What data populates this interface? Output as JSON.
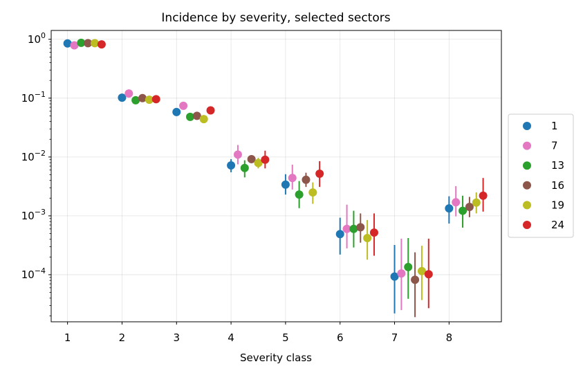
{
  "chart_data": {
    "type": "scatter",
    "title": "Incidence by severity, selected sectors",
    "xlabel": "Severity class",
    "ylabel": "",
    "yscale": "log",
    "xlim": [
      0.7,
      8.96
    ],
    "ylim_log10": [
      -4.8,
      0.15
    ],
    "x_ticks": [
      1,
      2,
      3,
      4,
      5,
      6,
      7,
      8
    ],
    "x_tick_labels": [
      "1",
      "2",
      "3",
      "4",
      "5",
      "6",
      "7",
      "8"
    ],
    "y_ticks": [
      {
        "exp": 0,
        "base": "10",
        "sup": "0"
      },
      {
        "exp": -1,
        "base": "10",
        "sup": "−1"
      },
      {
        "exp": -2,
        "base": "10",
        "sup": "−2"
      },
      {
        "exp": -3,
        "base": "10",
        "sup": "−3"
      },
      {
        "exp": -4,
        "base": "10",
        "sup": "−4"
      }
    ],
    "grid": true,
    "legend_position": "right-outside",
    "categories": [
      1,
      2,
      3,
      4,
      5,
      6,
      7,
      8
    ],
    "offset_step": 0.125,
    "series": [
      {
        "name": "1",
        "color": "#1f77b4",
        "values": [
          0.85,
          0.102,
          0.058,
          0.0072,
          0.0034,
          0.00049,
          9.3e-05,
          0.00134
        ],
        "lower": [
          0.85,
          0.102,
          0.058,
          0.0055,
          0.0023,
          0.00022,
          2.2e-05,
          0.00074
        ],
        "upper": [
          0.85,
          0.102,
          0.058,
          0.0092,
          0.0051,
          0.00093,
          0.00032,
          0.00215
        ]
      },
      {
        "name": "7",
        "color": "#e377c2",
        "values": [
          0.79,
          0.12,
          0.074,
          0.011,
          0.0044,
          0.0006,
          0.000105,
          0.0017
        ],
        "lower": [
          0.79,
          0.12,
          0.074,
          0.0075,
          0.0028,
          0.00028,
          2.5e-05,
          0.00098
        ],
        "upper": [
          0.79,
          0.12,
          0.074,
          0.016,
          0.0074,
          0.00155,
          0.00041,
          0.0032
        ]
      },
      {
        "name": "13",
        "color": "#2ca02c",
        "values": [
          0.87,
          0.092,
          0.048,
          0.0065,
          0.0023,
          0.0006,
          0.000135,
          0.00122
        ],
        "lower": [
          0.87,
          0.092,
          0.048,
          0.0045,
          0.00135,
          0.00029,
          3.9e-05,
          0.00063
        ],
        "upper": [
          0.87,
          0.092,
          0.048,
          0.0088,
          0.0039,
          0.00122,
          0.00042,
          0.0022
        ]
      },
      {
        "name": "16",
        "color": "#8c564b",
        "values": [
          0.86,
          0.1,
          0.05,
          0.0092,
          0.0041,
          0.00064,
          8.2e-05,
          0.00142
        ],
        "lower": [
          0.86,
          0.1,
          0.05,
          0.0092,
          0.0031,
          0.00035,
          1.9e-05,
          0.00095
        ],
        "upper": [
          0.86,
          0.1,
          0.05,
          0.0092,
          0.0054,
          0.0011,
          0.00024,
          0.0021
        ]
      },
      {
        "name": "19",
        "color": "#bcbd22",
        "values": [
          0.86,
          0.094,
          0.044,
          0.0079,
          0.0025,
          0.00042,
          0.000115,
          0.00168
        ],
        "lower": [
          0.86,
          0.094,
          0.044,
          0.0064,
          0.0016,
          0.00018,
          3.7e-05,
          0.0011
        ],
        "upper": [
          0.86,
          0.094,
          0.044,
          0.0097,
          0.0037,
          0.00085,
          0.00031,
          0.0025
        ]
      },
      {
        "name": "24",
        "color": "#d62728",
        "values": [
          0.82,
          0.096,
          0.062,
          0.009,
          0.0052,
          0.00052,
          0.000102,
          0.0022
        ],
        "lower": [
          0.82,
          0.096,
          0.062,
          0.0064,
          0.0031,
          0.00021,
          2.7e-05,
          0.00118
        ],
        "upper": [
          0.82,
          0.096,
          0.062,
          0.0128,
          0.0085,
          0.0011,
          0.00041,
          0.0044
        ]
      }
    ]
  }
}
